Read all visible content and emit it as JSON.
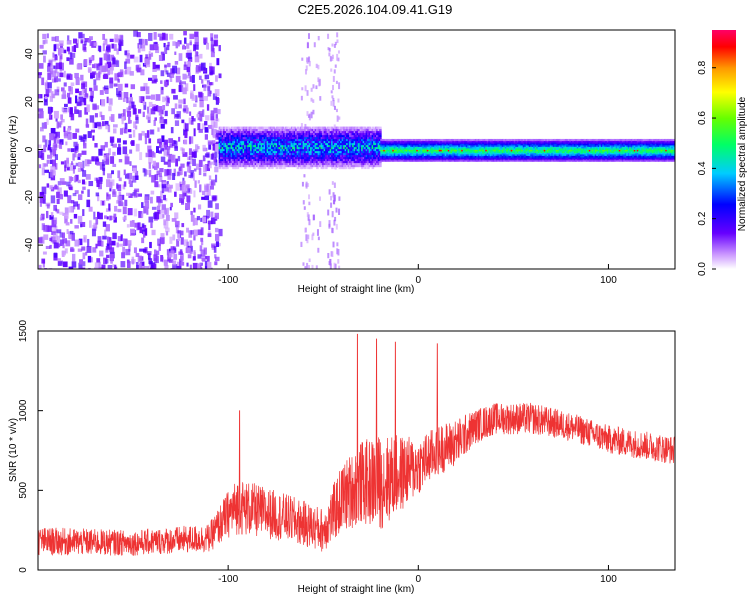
{
  "title": "C2E5.2026.104.09.41.G19",
  "chart_data": [
    {
      "type": "heatmap",
      "xlabel": "Height of straight line (km)",
      "ylabel": "Frequency (Hz)",
      "xlim": [
        -200,
        135
      ],
      "ylim": [
        -50,
        50
      ],
      "xticks": [
        -100,
        0,
        100
      ],
      "yticks": [
        -40,
        -20,
        0,
        20,
        40
      ],
      "colorbar": {
        "label": "Normalized spectral amplitude",
        "range": [
          0,
          0.95
        ],
        "ticks": [
          "0.0",
          "0.2",
          "0.4",
          "0.6",
          "0.8"
        ]
      },
      "regions": [
        {
          "x": [
            -200,
            -105
          ],
          "freq_spread_hz": [
            -50,
            50
          ],
          "amplitude": 0.12
        },
        {
          "x": [
            -105,
            -20
          ],
          "freq_spread_hz": [
            -5,
            8
          ],
          "amplitude": 0.35
        },
        {
          "x": [
            -20,
            135
          ],
          "freq_spread_hz": [
            -3,
            3
          ],
          "amplitude": 0.45
        }
      ]
    },
    {
      "type": "line",
      "xlabel": "Height of straight line (km)",
      "ylabel": "SNR (10 * v/v)",
      "xlim": [
        -200,
        135
      ],
      "ylim": [
        0,
        1500
      ],
      "xticks": [
        -100,
        0,
        100
      ],
      "yticks": [
        0,
        500,
        1000,
        1500
      ],
      "color": "#ee3333",
      "envelope": {
        "x": [
          -200,
          -150,
          -110,
          -100,
          -95,
          -70,
          -50,
          -40,
          -30,
          -20,
          -10,
          0,
          10,
          20,
          30,
          40,
          60,
          80,
          100,
          120,
          135
        ],
        "mean": [
          180,
          170,
          200,
          350,
          400,
          330,
          250,
          450,
          550,
          550,
          600,
          650,
          750,
          800,
          900,
          950,
          950,
          900,
          820,
          780,
          750
        ],
        "spread": [
          90,
          80,
          90,
          150,
          180,
          150,
          140,
          220,
          260,
          300,
          250,
          180,
          160,
          150,
          110,
          100,
          100,
          90,
          90,
          90,
          90
        ]
      },
      "spikes": [
        {
          "x": -94,
          "y": 1000
        },
        {
          "x": -32,
          "y": 1480
        },
        {
          "x": -22,
          "y": 1450
        },
        {
          "x": -12,
          "y": 1430
        },
        {
          "x": 10,
          "y": 1420
        }
      ]
    }
  ]
}
